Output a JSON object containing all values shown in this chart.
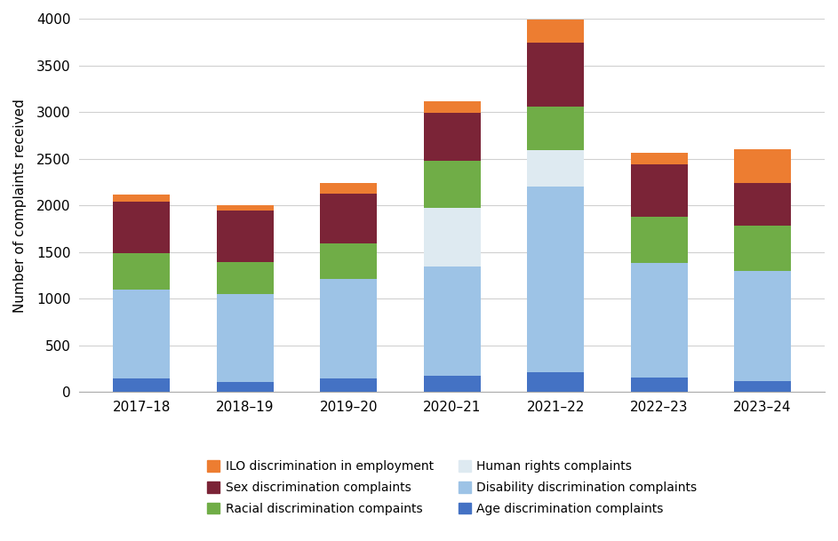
{
  "categories": [
    "2017–18",
    "2018–19",
    "2019–20",
    "2020–21",
    "2021–22",
    "2022–23",
    "2023–24"
  ],
  "series": {
    "Age discrimination complaints": [
      150,
      110,
      150,
      175,
      215,
      160,
      115
    ],
    "Disability discrimination complaints": [
      950,
      940,
      1060,
      1175,
      1990,
      1225,
      1185
    ],
    "Human rights complaints": [
      0,
      0,
      0,
      620,
      390,
      0,
      0
    ],
    "Racial discrimination compaints": [
      385,
      340,
      385,
      510,
      460,
      495,
      480
    ],
    "Sex discrimination complaints": [
      555,
      555,
      530,
      515,
      685,
      555,
      460
    ],
    "ILO discrimination in employment": [
      80,
      55,
      110,
      120,
      250,
      130,
      360
    ]
  },
  "colors": {
    "Age discrimination complaints": "#4472C4",
    "Disability discrimination complaints": "#9DC3E6",
    "Human rights complaints": "#DEEAF1",
    "Racial discrimination compaints": "#70AD47",
    "Sex discrimination complaints": "#7B2437",
    "ILO discrimination in employment": "#ED7D31"
  },
  "legend_order": [
    "ILO discrimination in employment",
    "Sex discrimination complaints",
    "Racial discrimination compaints",
    "Human rights complaints",
    "Disability discrimination complaints",
    "Age discrimination complaints"
  ],
  "ylabel": "Number of complaints received",
  "ylim": [
    0,
    4000
  ],
  "yticks": [
    0,
    500,
    1000,
    1500,
    2000,
    2500,
    3000,
    3500,
    4000
  ],
  "bar_width": 0.55,
  "background_color": "#ffffff",
  "grid_color": "#d0d0d0",
  "tick_fontsize": 11,
  "label_fontsize": 11,
  "legend_fontsize": 10
}
